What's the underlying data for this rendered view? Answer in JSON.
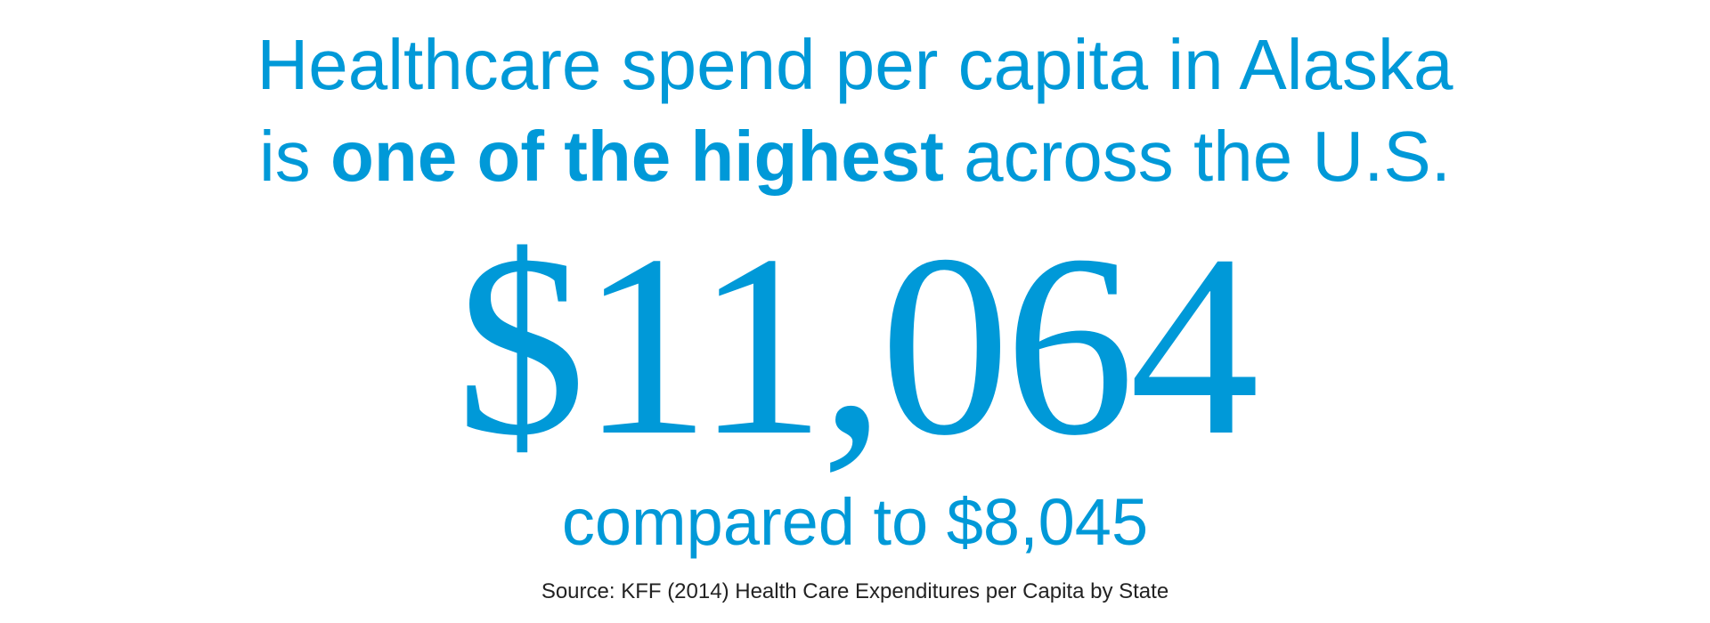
{
  "headline": {
    "line1": "Healthcare spend per capita in Alaska",
    "line2_start": "is",
    "line2_emphasis": "one of the highest",
    "line2_end": "across the U.S."
  },
  "figure": {
    "value": "$11,064",
    "comparison": "compared to $8,045"
  },
  "source": "Source: KFF (2014) Health Care Expenditures per Capita by State"
}
